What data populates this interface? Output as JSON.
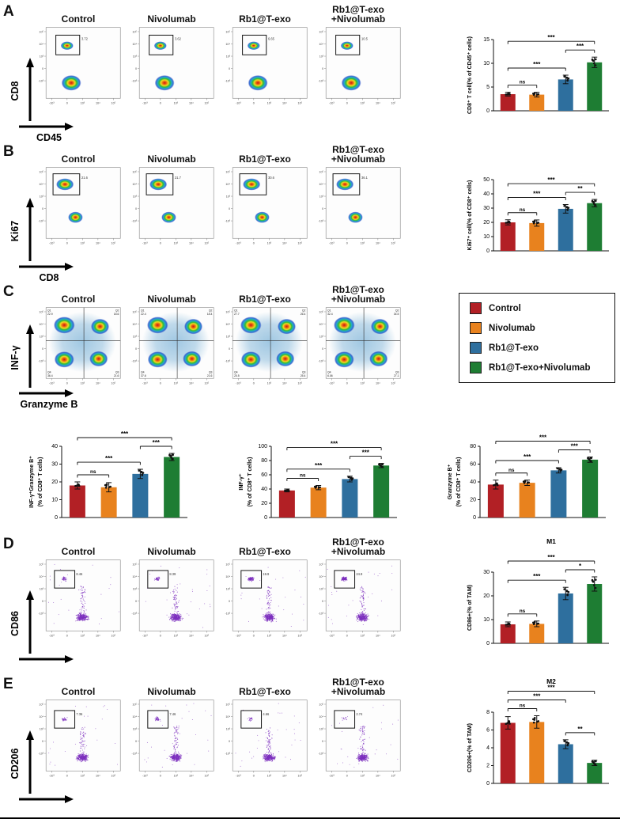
{
  "figure": {
    "colors": {
      "control": "#b22025",
      "nivolumab": "#e8821e",
      "rb1_t_exo": "#2e6f9e",
      "rb1_t_exo_nivolumab": "#1e7d33",
      "scatter": "#7d2fbe"
    },
    "legend": {
      "items": [
        {
          "label": "Control",
          "color": "#b22025"
        },
        {
          "label": "Nivolumab",
          "color": "#e8821e"
        },
        {
          "label": "Rb1@T-exo",
          "color": "#2e6f9e"
        },
        {
          "label": "Rb1@T-exo+Nivolumab",
          "color": "#1e7d33"
        }
      ]
    },
    "flow_axes": {
      "y_ticks": [
        "10⁵",
        "10⁴",
        "10³",
        "0",
        "-10³"
      ],
      "x_ticks": [
        "-10³",
        "0",
        "10³",
        "10⁴",
        "10⁵"
      ]
    },
    "quadrant_labels": [
      "Q1",
      "Q2",
      "Q3",
      "Q4"
    ],
    "panels": [
      {
        "letter": "A",
        "y_label": "CD8",
        "x_label": "CD45",
        "type": "gate2",
        "titles": [
          "Control",
          "Nivolumab",
          "Rb1@T-exo",
          "Rb1@T-exo\n+Nivolumab"
        ],
        "gates": [
          "3.72",
          "3.62",
          "6.65",
          "10.5"
        ]
      },
      {
        "letter": "B",
        "y_label": "Ki67",
        "x_label": "CD8",
        "type": "gate2b",
        "titles": [
          "Control",
          "Nivolumab",
          "Rb1@T-exo",
          "Rb1@T-exo\n+Nivolumab"
        ],
        "gates": [
          "21.6",
          "21.7",
          "30.6",
          "36.1"
        ]
      },
      {
        "letter": "C",
        "y_label": "INF-γ",
        "x_label": "Granzyme B",
        "type": "quad",
        "titles": [
          "Control",
          "Nivolumab",
          "Rb1@T-exo",
          "Rb1@T-exo\n+Nivolumab"
        ],
        "quads": [
          {
            "Q1": "22.9",
            "Q2": "18.6",
            "Q3": "21.6",
            "Q4": "36.4"
          },
          {
            "Q1": "22.4",
            "Q2": "18.4",
            "Q3": "21.6",
            "Q4": "37.6"
          },
          {
            "Q1": "27.7",
            "Q2": "26.4",
            "Q3": "25.4",
            "Q4": "20.5"
          },
          {
            "Q1": "32.4",
            "Q2": "34.5",
            "Q3": "27.1",
            "Q4": "6.06"
          }
        ]
      },
      {
        "letter": "D",
        "y_label": "CD86",
        "x_label": "",
        "type": "scatter",
        "titles": [
          "Control",
          "Nivolumab",
          "Rb1@T-exo",
          "Rb1@T-exo\n+Nivolumab"
        ],
        "gates": [
          "8.46",
          "8.39",
          "19.9",
          "24.9"
        ]
      },
      {
        "letter": "E",
        "y_label": "CD206",
        "x_label": "",
        "type": "scatter",
        "titles": [
          "Control",
          "Nivolumab",
          "Rb1@T-exo",
          "Rb1@T-exo\n+Nivolumab"
        ],
        "gates": [
          "7.36",
          "7.46",
          "4.66",
          "2.74"
        ]
      }
    ]
  },
  "chart_data": [
    {
      "type": "bar",
      "title": "",
      "categories": [
        "Control",
        "Nivolumab",
        "Rb1@T-exo",
        "Rb1@T-exo+Nivolumab"
      ],
      "values": [
        3.5,
        3.4,
        6.6,
        10.2
      ],
      "errors": [
        0.4,
        0.5,
        0.9,
        1.1
      ],
      "ylabel": [
        "CD8⁺ T cell(% of CD45⁺ cells)"
      ],
      "ylim": [
        0,
        15
      ],
      "yticks": [
        0,
        5,
        10,
        15
      ],
      "sig": [
        {
          "a": 0,
          "b": 1,
          "label": "ns"
        },
        {
          "a": 0,
          "b": 2,
          "label": "***"
        },
        {
          "a": 2,
          "b": 3,
          "label": "***"
        },
        {
          "a": 0,
          "b": 3,
          "label": "***"
        }
      ]
    },
    {
      "type": "bar",
      "title": "",
      "categories": [
        "Control",
        "Nivolumab",
        "Rb1@T-exo",
        "Rb1@T-exo+Nivolumab"
      ],
      "values": [
        20,
        19.5,
        29.5,
        33.5
      ],
      "errors": [
        1.8,
        2.2,
        3,
        2.6
      ],
      "ylabel": [
        "Ki67⁺ cell(% of CD8⁺ cells)"
      ],
      "ylim": [
        0,
        50
      ],
      "yticks": [
        0,
        10,
        20,
        30,
        40,
        50
      ],
      "sig": [
        {
          "a": 0,
          "b": 1,
          "label": "ns"
        },
        {
          "a": 0,
          "b": 2,
          "label": "***"
        },
        {
          "a": 2,
          "b": 3,
          "label": "**"
        },
        {
          "a": 0,
          "b": 3,
          "label": "***"
        }
      ]
    },
    {
      "type": "bar",
      "title": "",
      "categories": [
        "Control",
        "Nivolumab",
        "Rb1@T-exo",
        "Rb1@T-exo+Nivolumab"
      ],
      "values": [
        18,
        17,
        24.5,
        34
      ],
      "errors": [
        2,
        2.6,
        2.6,
        2
      ],
      "ylabel": [
        "INF-γ⁺Granzyme B⁺",
        "(% of CD8⁺ T cells)"
      ],
      "ylim": [
        0,
        40
      ],
      "yticks": [
        0,
        10,
        20,
        30,
        40
      ],
      "sig": [
        {
          "a": 0,
          "b": 1,
          "label": "ns"
        },
        {
          "a": 0,
          "b": 2,
          "label": "***"
        },
        {
          "a": 2,
          "b": 3,
          "label": "***"
        },
        {
          "a": 0,
          "b": 3,
          "label": "***"
        }
      ]
    },
    {
      "type": "bar",
      "title": "",
      "categories": [
        "Control",
        "Nivolumab",
        "Rb1@T-exo",
        "Rb1@T-exo+Nivolumab"
      ],
      "values": [
        38,
        42,
        54,
        73
      ],
      "errors": [
        2,
        3,
        4,
        3
      ],
      "ylabel": [
        "INF-γ⁺",
        "(% of CD8⁺ T cells)"
      ],
      "ylim": [
        0,
        100
      ],
      "yticks": [
        0,
        20,
        40,
        60,
        80,
        100
      ],
      "sig": [
        {
          "a": 0,
          "b": 1,
          "label": "ns"
        },
        {
          "a": 0,
          "b": 2,
          "label": "***"
        },
        {
          "a": 2,
          "b": 3,
          "label": "***"
        },
        {
          "a": 0,
          "b": 3,
          "label": "***"
        }
      ]
    },
    {
      "type": "bar",
      "title": "",
      "categories": [
        "Control",
        "Nivolumab",
        "Rb1@T-exo",
        "Rb1@T-exo+Nivolumab"
      ],
      "values": [
        37,
        39,
        53,
        65
      ],
      "errors": [
        5,
        3,
        3,
        3
      ],
      "ylabel": [
        "Granzyme B⁺",
        "(% of CD8⁺ T cells)"
      ],
      "ylim": [
        0,
        80
      ],
      "yticks": [
        0,
        20,
        40,
        60,
        80
      ],
      "sig": [
        {
          "a": 0,
          "b": 1,
          "label": "ns"
        },
        {
          "a": 0,
          "b": 2,
          "label": "***"
        },
        {
          "a": 2,
          "b": 3,
          "label": "***"
        },
        {
          "a": 0,
          "b": 3,
          "label": "***"
        }
      ]
    },
    {
      "type": "bar",
      "title": "M1",
      "categories": [
        "Control",
        "Nivolumab",
        "Rb1@T-exo",
        "Rb1@T-exo+Nivolumab"
      ],
      "values": [
        8,
        8.2,
        21,
        25
      ],
      "errors": [
        1,
        1.2,
        2.6,
        3
      ],
      "ylabel": [
        "CD86+(% of TAM)"
      ],
      "ylim": [
        0,
        30
      ],
      "yticks": [
        0,
        10,
        20,
        30
      ],
      "sig": [
        {
          "a": 0,
          "b": 1,
          "label": "ns"
        },
        {
          "a": 0,
          "b": 2,
          "label": "***"
        },
        {
          "a": 2,
          "b": 3,
          "label": "*"
        },
        {
          "a": 0,
          "b": 3,
          "label": "***"
        }
      ]
    },
    {
      "type": "bar",
      "title": "M2",
      "categories": [
        "Control",
        "Nivolumab",
        "Rb1@T-exo",
        "Rb1@T-exo+Nivolumab"
      ],
      "values": [
        6.8,
        6.9,
        4.4,
        2.3
      ],
      "errors": [
        0.7,
        0.7,
        0.5,
        0.3
      ],
      "ylabel": [
        "CD206+(% of TAM)"
      ],
      "ylim": [
        0,
        8
      ],
      "yticks": [
        0,
        2,
        4,
        6,
        8
      ],
      "sig": [
        {
          "a": 0,
          "b": 1,
          "label": "ns"
        },
        {
          "a": 0,
          "b": 2,
          "label": "***"
        },
        {
          "a": 2,
          "b": 3,
          "label": "**"
        },
        {
          "a": 0,
          "b": 3,
          "label": "***"
        }
      ]
    }
  ]
}
